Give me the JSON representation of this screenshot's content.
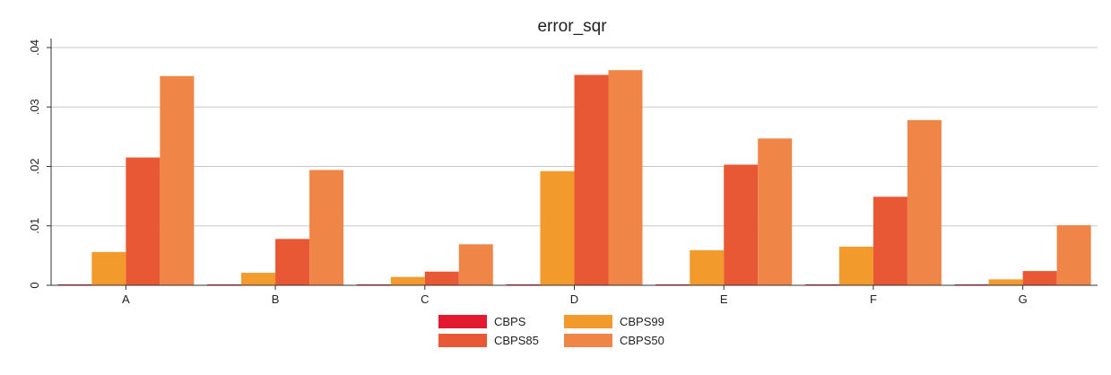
{
  "chart_data": {
    "type": "bar",
    "title": "error_sqr",
    "xlabel": "",
    "ylabel": "",
    "categories": [
      "A",
      "B",
      "C",
      "D",
      "E",
      "F",
      "G"
    ],
    "ylim": [
      0,
      0.04
    ],
    "yticks": [
      0,
      0.01,
      0.02,
      0.03,
      0.04
    ],
    "ytick_labels": [
      "0",
      ".01",
      ".02",
      ".03",
      ".04"
    ],
    "grid": true,
    "legend_position": "bottom",
    "series": [
      {
        "name": "CBPS",
        "color": "#e31a2f",
        "values": [
          0.0001,
          0.0001,
          0.0001,
          0.0001,
          0.0001,
          0.0001,
          0.0001
        ]
      },
      {
        "name": "CBPS99",
        "color": "#f39a2c",
        "values": [
          0.0056,
          0.0021,
          0.0014,
          0.0192,
          0.0059,
          0.0065,
          0.001
        ]
      },
      {
        "name": "CBPS85",
        "color": "#e95835",
        "values": [
          0.0215,
          0.0078,
          0.0023,
          0.0354,
          0.0203,
          0.0149,
          0.0024
        ]
      },
      {
        "name": "CBPS50",
        "color": "#f08548",
        "values": [
          0.0352,
          0.0194,
          0.0069,
          0.0362,
          0.0247,
          0.0278,
          0.0101
        ]
      }
    ]
  }
}
